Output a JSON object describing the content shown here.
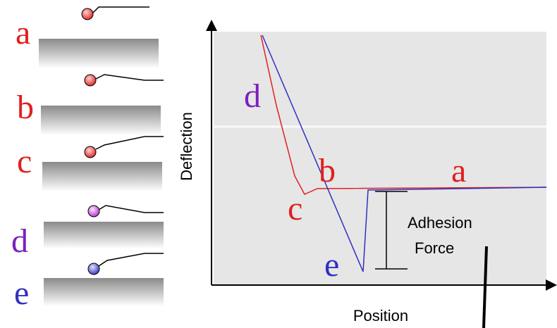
{
  "cantilever_states": [
    {
      "label": "a"
    },
    {
      "label": "b"
    },
    {
      "label": "c"
    },
    {
      "label": "d"
    },
    {
      "label": "e"
    }
  ],
  "plot": {
    "y_axis_label": "Deflection",
    "x_axis_label": "Position",
    "curve_labels": [
      "d",
      "b",
      "a",
      "c",
      "e"
    ],
    "annotation": [
      "Adhesion",
      "Force"
    ]
  }
}
